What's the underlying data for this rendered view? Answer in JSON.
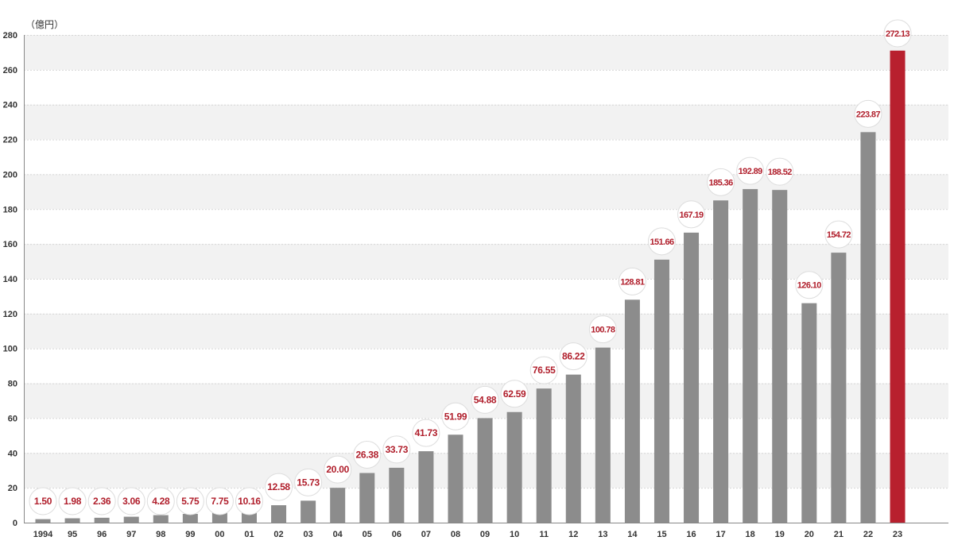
{
  "chart_data": {
    "type": "bar",
    "title": "",
    "unit_label": "（億円）",
    "xlabel": "",
    "ylabel": "",
    "ylim": [
      0,
      280
    ],
    "y_ticks": [
      0,
      20,
      40,
      60,
      80,
      100,
      120,
      140,
      160,
      180,
      200,
      220,
      240,
      260,
      280
    ],
    "y_tick_labels": [
      "0",
      "20",
      "40",
      "60",
      "80",
      "100",
      "120",
      "140",
      "160",
      "180",
      "200",
      "220",
      "240",
      "260",
      "280"
    ],
    "grid": true,
    "categories": [
      "1994",
      "95",
      "96",
      "97",
      "98",
      "99",
      "00",
      "01",
      "02",
      "03",
      "04",
      "05",
      "06",
      "07",
      "08",
      "09",
      "10",
      "11",
      "12",
      "13",
      "14",
      "15",
      "16",
      "17",
      "18",
      "19",
      "20",
      "21",
      "22",
      "23"
    ],
    "values": [
      1.5,
      1.98,
      2.36,
      3.06,
      4.28,
      5.75,
      7.75,
      10.16,
      12.58,
      15.73,
      20.0,
      26.38,
      33.73,
      41.73,
      51.99,
      54.88,
      62.59,
      76.55,
      86.22,
      100.78,
      128.81,
      151.66,
      167.19,
      185.36,
      192.89,
      188.52,
      126.1,
      154.72,
      223.87,
      272.13
    ],
    "value_labels": [
      "1.50",
      "1.98",
      "2.36",
      "3.06",
      "4.28",
      "5.75",
      "7.75",
      "10.16",
      "12.58",
      "15.73",
      "20.00",
      "26.38",
      "33.73",
      "41.73",
      "51.99",
      "54.88",
      "62.59",
      "76.55",
      "86.22",
      "100.78",
      "128.81",
      "151.66",
      "167.19",
      "185.36",
      "192.89",
      "188.52",
      "126.10",
      "154.72",
      "223.87",
      "272.13"
    ],
    "bar_heights_shown": [
      2,
      2.5,
      2.8,
      3.4,
      4.3,
      5,
      6.5,
      8.5,
      10,
      12.6,
      20,
      28.5,
      31.5,
      41,
      50.5,
      60,
      63.5,
      77,
      85,
      100.5,
      128,
      151,
      166.5,
      185,
      191.5,
      191,
      126,
      155,
      224.2,
      271
    ],
    "highlight_index": 29,
    "colors": {
      "bar": "#8c8c8c",
      "highlight_bar": "#b8202e",
      "label_text": "#b01e2b",
      "band": "#f2f2f2",
      "grid": "#d6d6d6",
      "axis": "#888888"
    }
  }
}
